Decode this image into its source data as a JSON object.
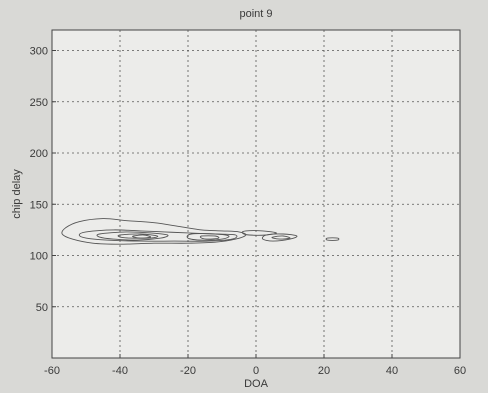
{
  "chart_data": {
    "type": "contour",
    "title": "point 9",
    "xlabel": "DOA",
    "ylabel": "chip delay",
    "xlim": [
      -60,
      60
    ],
    "ylim": [
      0,
      320
    ],
    "xticks": [
      -60,
      -40,
      -20,
      0,
      20,
      40,
      60
    ],
    "yticks": [
      50,
      100,
      150,
      200,
      250,
      300
    ],
    "grid": true,
    "contours": [
      {
        "level": 1,
        "points": [
          [
            -52,
            133
          ],
          [
            -45,
            136
          ],
          [
            -38,
            134
          ],
          [
            -30,
            132
          ],
          [
            -22,
            128
          ],
          [
            -16,
            125
          ],
          [
            -10,
            124
          ],
          [
            -5,
            123
          ],
          [
            -3,
            120
          ],
          [
            -6,
            116
          ],
          [
            -12,
            113
          ],
          [
            -20,
            112
          ],
          [
            -30,
            112
          ],
          [
            -40,
            111
          ],
          [
            -48,
            112
          ],
          [
            -54,
            116
          ],
          [
            -57,
            121
          ],
          [
            -56,
            127
          ],
          [
            -52,
            133
          ]
        ]
      },
      {
        "level": 2,
        "points": [
          [
            -50,
            123
          ],
          [
            -42,
            125
          ],
          [
            -34,
            124
          ],
          [
            -27,
            123
          ],
          [
            -20,
            122
          ],
          [
            -12,
            121
          ],
          [
            -6,
            120
          ],
          [
            -7,
            116
          ],
          [
            -14,
            114
          ],
          [
            -24,
            114
          ],
          [
            -34,
            114
          ],
          [
            -44,
            115
          ],
          [
            -50,
            117
          ],
          [
            -52,
            120
          ],
          [
            -50,
            123
          ]
        ]
      },
      {
        "level": 3,
        "points": [
          [
            -46,
            121
          ],
          [
            -38,
            123
          ],
          [
            -31,
            122
          ],
          [
            -26,
            120
          ],
          [
            -28,
            117
          ],
          [
            -35,
            115
          ],
          [
            -42,
            116
          ],
          [
            -46,
            118
          ],
          [
            -46,
            121
          ]
        ]
      },
      {
        "level": 4,
        "points": [
          [
            -40,
            120
          ],
          [
            -34,
            121
          ],
          [
            -29,
            119
          ],
          [
            -31,
            117
          ],
          [
            -37,
            117
          ],
          [
            -40,
            118
          ],
          [
            -40,
            120
          ]
        ]
      },
      {
        "level": 5,
        "points": [
          [
            -36,
            119
          ],
          [
            -33,
            120
          ],
          [
            -31,
            118
          ],
          [
            -34,
            117
          ],
          [
            -36,
            118
          ],
          [
            -36,
            119
          ]
        ]
      },
      {
        "level": 3,
        "points": [
          [
            -19,
            121
          ],
          [
            -12,
            121
          ],
          [
            -8,
            119
          ],
          [
            -10,
            116
          ],
          [
            -16,
            115
          ],
          [
            -20,
            117
          ],
          [
            -19,
            121
          ]
        ]
      },
      {
        "level": 4,
        "points": [
          [
            -16,
            119
          ],
          [
            -12,
            119
          ],
          [
            -11,
            117
          ],
          [
            -14,
            116
          ],
          [
            -16,
            117
          ],
          [
            -16,
            119
          ]
        ]
      },
      {
        "level": 1,
        "points": [
          [
            -3,
            124
          ],
          [
            2,
            124
          ],
          [
            6,
            122
          ],
          [
            3,
            120
          ],
          [
            -2,
            120
          ],
          [
            -4,
            122
          ],
          [
            -3,
            124
          ]
        ]
      },
      {
        "level": 1,
        "points": [
          [
            3,
            120
          ],
          [
            8,
            121
          ],
          [
            12,
            119
          ],
          [
            10,
            116
          ],
          [
            5,
            114
          ],
          [
            2,
            116
          ],
          [
            3,
            120
          ]
        ]
      },
      {
        "level": 2,
        "points": [
          [
            5,
            118
          ],
          [
            8,
            119
          ],
          [
            10,
            117
          ],
          [
            7,
            116
          ],
          [
            5,
            117
          ],
          [
            5,
            118
          ]
        ]
      },
      {
        "level": 1,
        "points": [
          [
            21,
            117
          ],
          [
            24,
            117
          ],
          [
            24,
            115
          ],
          [
            21,
            115
          ],
          [
            21,
            117
          ]
        ]
      }
    ]
  }
}
